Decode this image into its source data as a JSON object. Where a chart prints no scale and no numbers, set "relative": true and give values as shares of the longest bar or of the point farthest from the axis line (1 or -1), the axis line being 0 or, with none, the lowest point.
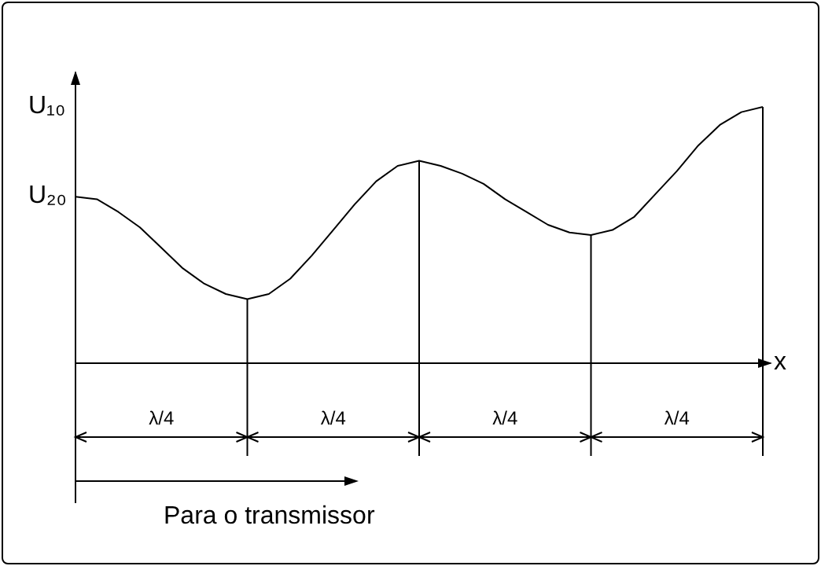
{
  "chart_data": {
    "type": "line",
    "relative": true,
    "xlabel": "x",
    "color": "#000000",
    "categories": [
      null,
      null,
      null,
      null,
      null,
      null,
      null,
      null,
      null,
      null,
      null,
      null,
      null,
      null,
      null,
      null,
      null,
      null,
      null,
      null,
      null,
      null,
      null,
      null,
      null,
      null,
      null,
      null,
      null,
      null,
      null,
      null,
      null
    ],
    "values": [
      0.65,
      0.64,
      0.59,
      0.53,
      0.45,
      0.37,
      0.31,
      0.27,
      0.25,
      0.27,
      0.33,
      0.42,
      0.52,
      0.62,
      0.71,
      0.77,
      0.79,
      0.77,
      0.74,
      0.7,
      0.64,
      0.59,
      0.54,
      0.51,
      0.5,
      0.52,
      0.57,
      0.66,
      0.75,
      0.85,
      0.93,
      0.98,
      1.0
    ],
    "annotations": [
      "λ/4",
      "λ/4",
      "λ/4",
      "λ/4",
      "Para o transmissor",
      "U₁₀",
      "U₂₀"
    ],
    "grid": "x",
    "marker": "none",
    "line_style": "solid"
  }
}
